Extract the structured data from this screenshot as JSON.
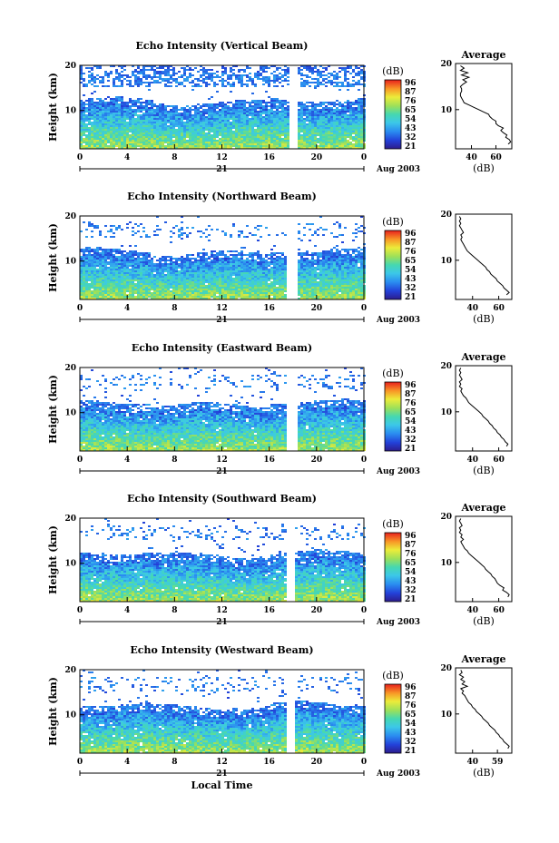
{
  "chart_data": [
    {
      "type": "heatmap",
      "title": "Echo Intensity (Vertical Beam)",
      "ylabel": "Height (km)",
      "xlabel": "",
      "date_label": "Aug 2003",
      "day_label": "21",
      "x_ticks": [
        "0",
        "4",
        "8",
        "12",
        "16",
        "20",
        "0"
      ],
      "y_ticks": [
        "10",
        "20"
      ],
      "xlim": [
        0,
        24
      ],
      "ylim": [
        1.5,
        20
      ],
      "data_gap": [
        17.6,
        18.3
      ],
      "colorbar": {
        "label": "(dB)",
        "ticks": [
          "96",
          "87",
          "76",
          "65",
          "54",
          "43",
          "32",
          "21"
        ],
        "range": [
          21,
          96
        ]
      },
      "average_profile": {
        "title": "Average",
        "xlabel": "(dB)",
        "x_ticks": [
          "40",
          "60"
        ],
        "y_ticks": [
          "10",
          "20"
        ],
        "xlim": [
          27,
          73
        ],
        "height": [
          2.5,
          3,
          3.5,
          4,
          4.5,
          5,
          5.5,
          6,
          6.5,
          7,
          7.5,
          8,
          8.5,
          9,
          9.5,
          10,
          10.5,
          11,
          11.5,
          12,
          12.5,
          13,
          13.5,
          14,
          14.5,
          15,
          15.5,
          16,
          16.5,
          17,
          17.5,
          18,
          18.5,
          19,
          19.5
        ],
        "db": [
          70,
          72,
          71,
          68,
          69,
          66,
          64,
          66,
          62,
          60,
          60,
          57,
          55,
          54,
          50,
          46,
          42,
          38,
          34,
          33,
          32,
          31,
          31,
          32,
          32,
          31,
          33,
          36,
          33,
          38,
          32,
          37,
          31,
          34,
          31
        ]
      }
    },
    {
      "type": "heatmap",
      "title": "Echo Intensity (Northward Beam)",
      "ylabel": "Height (km)",
      "xlabel": "",
      "date_label": "Aug 2003",
      "day_label": "21",
      "x_ticks": [
        "0",
        "4",
        "8",
        "12",
        "16",
        "20",
        "0"
      ],
      "y_ticks": [
        "10",
        "20"
      ],
      "xlim": [
        0,
        24
      ],
      "ylim": [
        1.5,
        20
      ],
      "data_gap": [
        17.3,
        18.2
      ],
      "colorbar": {
        "label": "(dB)",
        "ticks": [
          "96",
          "87",
          "76",
          "65",
          "54",
          "43",
          "32",
          "21"
        ],
        "range": [
          21,
          96
        ]
      },
      "average_profile": {
        "title": "",
        "xlabel": "(dB)",
        "x_ticks": [
          "40",
          "60"
        ],
        "y_ticks": [
          "10",
          "20"
        ],
        "xlim": [
          27,
          70
        ],
        "height": [
          2.5,
          3,
          3.5,
          4,
          4.5,
          5,
          5.5,
          6,
          6.5,
          7,
          7.5,
          8,
          8.5,
          9,
          9.5,
          10,
          10.5,
          11,
          11.5,
          12,
          12.5,
          13,
          13.5,
          14,
          14.5,
          15,
          15.5,
          16,
          16.5,
          17,
          17.5,
          18,
          18.5,
          19,
          19.5
        ],
        "db": [
          66,
          68,
          66,
          64,
          63,
          61,
          59,
          58,
          56,
          54,
          53,
          51,
          50,
          48,
          46,
          44,
          42,
          40,
          38,
          36,
          35,
          34,
          33,
          32,
          31,
          32,
          31,
          33,
          32,
          31,
          30,
          31,
          30,
          31,
          30
        ]
      }
    },
    {
      "type": "heatmap",
      "title": "Echo Intensity (Eastward Beam)",
      "ylabel": "Height (km)",
      "xlabel": "",
      "date_label": "Aug 2003",
      "day_label": "21",
      "x_ticks": [
        "0",
        "4",
        "8",
        "12",
        "16",
        "20",
        "0"
      ],
      "y_ticks": [
        "10",
        "20"
      ],
      "xlim": [
        0,
        24
      ],
      "ylim": [
        1.5,
        20
      ],
      "data_gap": [
        17.4,
        18.2
      ],
      "colorbar": {
        "label": "(dB)",
        "ticks": [
          "96",
          "87",
          "76",
          "65",
          "54",
          "43",
          "32",
          "21"
        ],
        "range": [
          21,
          96
        ]
      },
      "average_profile": {
        "title": "Average",
        "xlabel": "(dB)",
        "x_ticks": [
          "40",
          "60"
        ],
        "y_ticks": [
          "10",
          "20"
        ],
        "xlim": [
          27,
          70
        ],
        "height": [
          2.5,
          3,
          3.5,
          4,
          4.5,
          5,
          5.5,
          6,
          6.5,
          7,
          7.5,
          8,
          8.5,
          9,
          9.5,
          10,
          10.5,
          11,
          11.5,
          12,
          12.5,
          13,
          13.5,
          14,
          14.5,
          15,
          15.5,
          16,
          16.5,
          17,
          17.5,
          18,
          18.5,
          19,
          19.5
        ],
        "db": [
          66,
          67,
          65,
          64,
          62,
          61,
          59,
          58,
          56,
          55,
          53,
          52,
          50,
          48,
          47,
          45,
          43,
          41,
          39,
          37,
          36,
          35,
          33,
          32,
          31,
          32,
          30,
          31,
          30,
          32,
          31,
          30,
          31,
          30,
          31
        ]
      }
    },
    {
      "type": "heatmap",
      "title": "Echo Intensity (Southward Beam)",
      "ylabel": "Height (km)",
      "xlabel": "",
      "date_label": "Aug 2003",
      "day_label": "21",
      "x_ticks": [
        "0",
        "4",
        "8",
        "12",
        "16",
        "20",
        "0"
      ],
      "y_ticks": [
        "10",
        "20"
      ],
      "xlim": [
        0,
        24
      ],
      "ylim": [
        1.5,
        20
      ],
      "data_gap": [
        17.4,
        18.1
      ],
      "colorbar": {
        "label": "(dB)",
        "ticks": [
          "96",
          "87",
          "76",
          "65",
          "54",
          "43",
          "32",
          "21"
        ],
        "range": [
          21,
          96
        ]
      },
      "average_profile": {
        "title": "Average",
        "xlabel": "(dB)",
        "x_ticks": [
          "40",
          "60"
        ],
        "y_ticks": [
          "10",
          "20"
        ],
        "xlim": [
          27,
          70
        ],
        "height": [
          2.5,
          3,
          3.5,
          4,
          4.5,
          5,
          5.5,
          6,
          6.5,
          7,
          7.5,
          8,
          8.5,
          9,
          9.5,
          10,
          10.5,
          11,
          11.5,
          12,
          12.5,
          13,
          13.5,
          14,
          14.5,
          15,
          15.5,
          16,
          16.5,
          17,
          17.5,
          18,
          18.5,
          19,
          19.5
        ],
        "db": [
          67,
          68,
          66,
          63,
          64,
          61,
          59,
          58,
          57,
          55,
          54,
          52,
          50,
          49,
          47,
          45,
          43,
          41,
          39,
          37,
          36,
          34,
          33,
          32,
          31,
          33,
          31,
          32,
          30,
          31,
          30,
          32,
          31,
          30,
          31
        ]
      }
    },
    {
      "type": "heatmap",
      "title": "Echo Intensity (Westward Beam)",
      "ylabel": "Height (km)",
      "xlabel": "Local Time",
      "date_label": "Aug 2003",
      "day_label": "21",
      "x_ticks": [
        "0",
        "4",
        "8",
        "12",
        "16",
        "20",
        "0"
      ],
      "y_ticks": [
        "10",
        "20"
      ],
      "xlim": [
        0,
        24
      ],
      "ylim": [
        1.5,
        20
      ],
      "data_gap": [
        17.3,
        18.1
      ],
      "colorbar": {
        "label": "(dB)",
        "ticks": [
          "96",
          "87",
          "76",
          "65",
          "54",
          "43",
          "32",
          "21"
        ],
        "range": [
          21,
          96
        ]
      },
      "average_profile": {
        "title": "Average",
        "xlabel": "(dB)",
        "x_ticks": [
          "40",
          "59"
        ],
        "y_ticks": [
          "10",
          "20"
        ],
        "xlim": [
          27,
          70
        ],
        "height": [
          2.5,
          3,
          3.5,
          4,
          4.5,
          5,
          5.5,
          6,
          6.5,
          7,
          7.5,
          8,
          8.5,
          9,
          9.5,
          10,
          10.5,
          11,
          11.5,
          12,
          12.5,
          13,
          13.5,
          14,
          14.5,
          15,
          15.5,
          16,
          16.5,
          17,
          17.5,
          18,
          18.5,
          19,
          19.5
        ],
        "db": [
          67,
          68,
          66,
          64,
          63,
          61,
          60,
          58,
          57,
          55,
          53,
          52,
          50,
          48,
          47,
          45,
          43,
          42,
          40,
          39,
          37,
          36,
          35,
          34,
          32,
          33,
          31,
          36,
          32,
          34,
          31,
          33,
          30,
          32,
          31
        ]
      }
    }
  ]
}
